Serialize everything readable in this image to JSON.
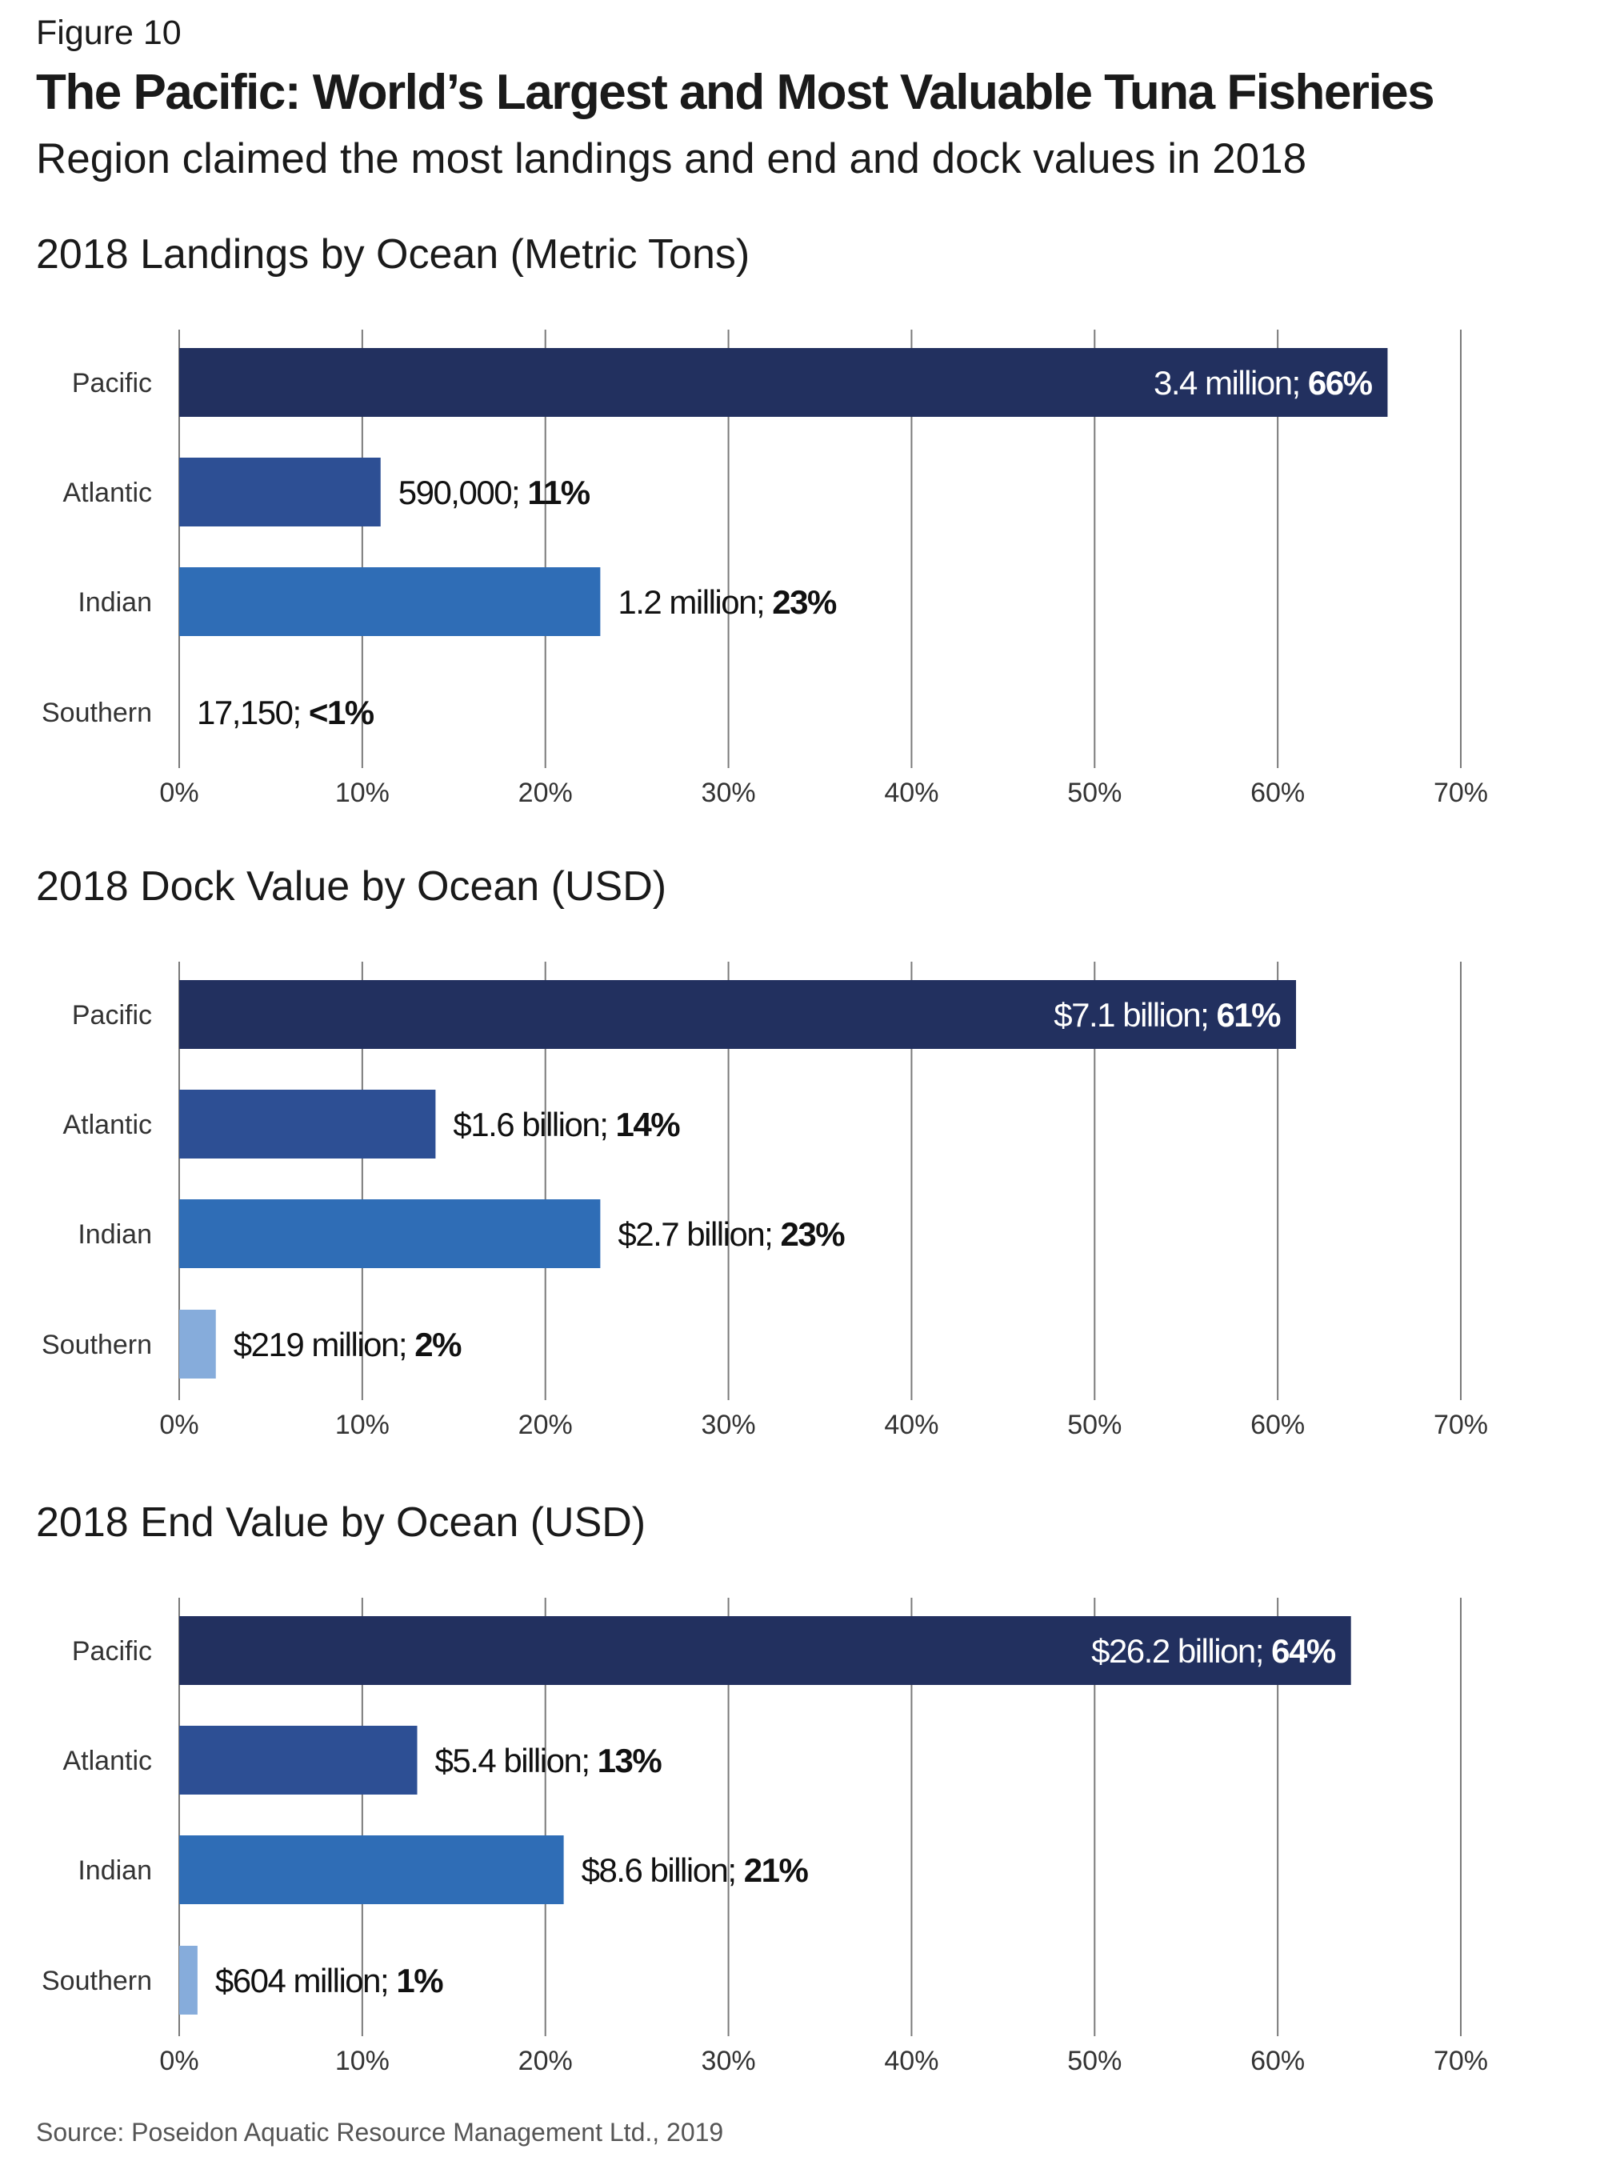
{
  "figure": {
    "label": "Figure 10",
    "title": "The Pacific: World’s Largest and Most Valuable Tuna Fisheries",
    "subtitle": "Region claimed the most landings and end and dock values in 2018",
    "source": "Source: Poseidon Aquatic Resource Management Ltd., 2019"
  },
  "colors": {
    "pacific": "#22305f",
    "atlantic": "#2d4f94",
    "indian": "#2f6db6",
    "southern": "#86acdb",
    "grid": "#7a7a7a"
  },
  "chart_data": [
    {
      "type": "bar",
      "orientation": "horizontal",
      "title": "2018 Landings by Ocean (Metric Tons)",
      "categories": [
        "Pacific",
        "Atlantic",
        "Indian",
        "Southern"
      ],
      "values": [
        66,
        11,
        23,
        0.3
      ],
      "value_labels": [
        "3.4 million; ",
        "590,000; ",
        "1.2 million; ",
        "17,150; "
      ],
      "percent_labels": [
        "66%",
        "11%",
        "23%",
        "<1%"
      ],
      "xlim": [
        0,
        70
      ],
      "x_ticks": [
        "0%",
        "10%",
        "20%",
        "30%",
        "40%",
        "50%",
        "60%",
        "70%"
      ],
      "grid": true,
      "legend": "none"
    },
    {
      "type": "bar",
      "orientation": "horizontal",
      "title": "2018 Dock Value by Ocean (USD)",
      "categories": [
        "Pacific",
        "Atlantic",
        "Indian",
        "Southern"
      ],
      "values": [
        61,
        14,
        23,
        2
      ],
      "value_labels": [
        "$7.1 billion; ",
        "$1.6 billion; ",
        "$2.7 billion; ",
        "$219 million; "
      ],
      "percent_labels": [
        "61%",
        "14%",
        "23%",
        "2%"
      ],
      "xlim": [
        0,
        70
      ],
      "x_ticks": [
        "0%",
        "10%",
        "20%",
        "30%",
        "40%",
        "50%",
        "60%",
        "70%"
      ],
      "grid": true,
      "legend": "none"
    },
    {
      "type": "bar",
      "orientation": "horizontal",
      "title": "2018 End Value by Ocean (USD)",
      "categories": [
        "Pacific",
        "Atlantic",
        "Indian",
        "Southern"
      ],
      "values": [
        64,
        13,
        21,
        1
      ],
      "value_labels": [
        "$26.2 billion; ",
        "$5.4 billion; ",
        "$8.6 billion; ",
        "$604 million; "
      ],
      "percent_labels": [
        "64%",
        "13%",
        "21%",
        "1%"
      ],
      "xlim": [
        0,
        70
      ],
      "x_ticks": [
        "0%",
        "10%",
        "20%",
        "30%",
        "40%",
        "50%",
        "60%",
        "70%"
      ],
      "grid": true,
      "legend": "none"
    }
  ]
}
